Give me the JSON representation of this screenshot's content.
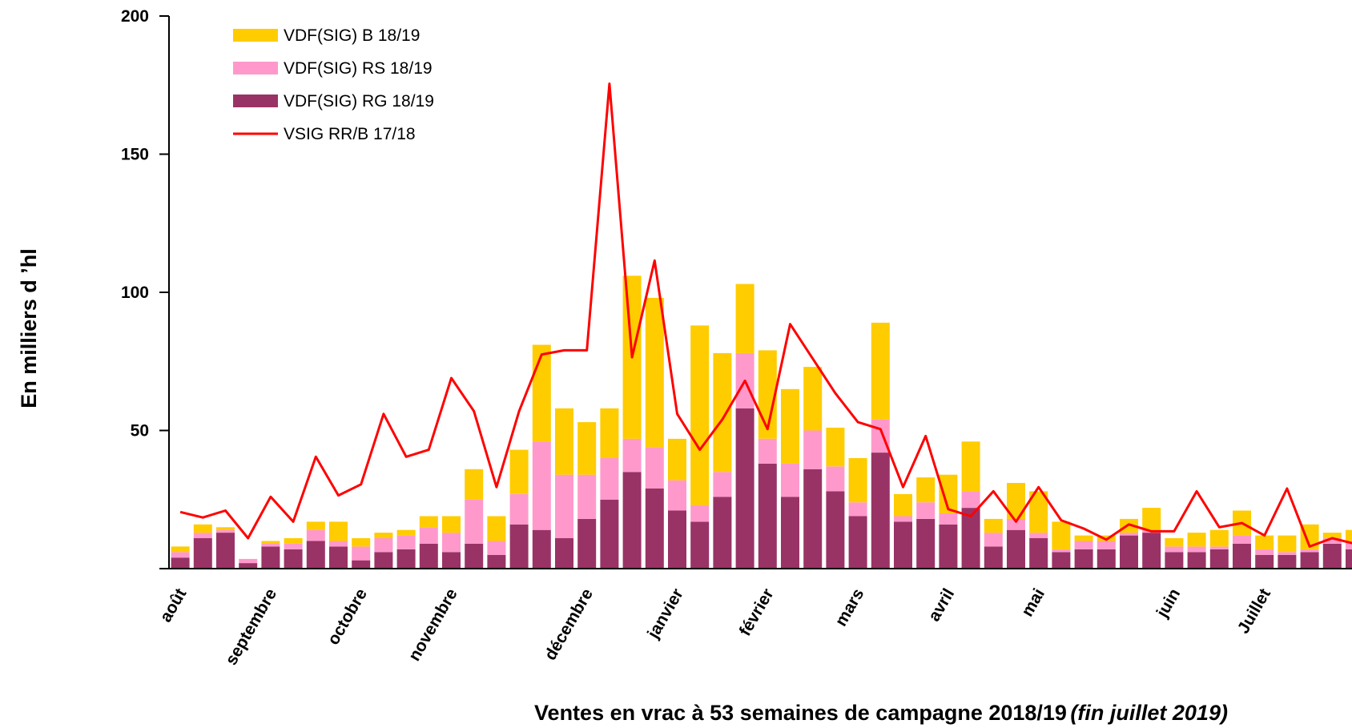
{
  "chart_data": {
    "type": "bar",
    "stacked": true,
    "title": "",
    "ylabel": "En milliers d ’hl",
    "xlabel_main": "Ventes en vrac à 53 semaines de campagne 2018/19",
    "xlabel_italic": "(fin juillet 2019)",
    "ylim": [
      0,
      200
    ],
    "yticks": [
      50,
      100,
      150,
      200
    ],
    "month_labels": [
      {
        "label": "août",
        "week": 1
      },
      {
        "label": "septembre",
        "week": 5
      },
      {
        "label": "octobre",
        "week": 9
      },
      {
        "label": "novembre",
        "week": 13
      },
      {
        "label": "décembre",
        "week": 19
      },
      {
        "label": "janvier",
        "week": 23
      },
      {
        "label": "février",
        "week": 27
      },
      {
        "label": "mars",
        "week": 31
      },
      {
        "label": "avril",
        "week": 35
      },
      {
        "label": "mai",
        "week": 39
      },
      {
        "label": "juin",
        "week": 45
      },
      {
        "label": "Juillet",
        "week": 49
      }
    ],
    "legend": [
      {
        "name": "VDF(SIG) B 18/19",
        "color": "#FFCC00",
        "kind": "bar"
      },
      {
        "name": "VDF(SIG) RS 18/19",
        "color": "#FF99CC",
        "kind": "bar"
      },
      {
        "name": "VDF(SIG) RG 18/19",
        "color": "#993366",
        "kind": "bar"
      },
      {
        "name": "VSIG RR/B 17/18",
        "color": "#FF0000",
        "kind": "line"
      }
    ],
    "series": [
      {
        "name": "VDF(SIG) RG 18/19",
        "color": "#993366",
        "values": [
          4,
          11,
          13,
          2,
          8,
          7,
          10,
          8,
          3,
          6,
          7,
          9,
          6,
          9,
          5,
          16,
          14,
          11,
          18,
          25,
          35,
          29,
          21,
          17,
          26,
          58,
          38,
          26,
          36,
          28,
          19,
          42,
          17,
          18,
          16,
          22,
          8,
          14,
          11,
          6,
          7,
          7,
          12,
          13,
          6,
          6,
          7,
          9,
          5,
          5,
          6,
          9,
          7
        ]
      },
      {
        "name": "VDF(SIG) RS 18/19",
        "color": "#FF99CC",
        "values": [
          2,
          2,
          1,
          1.5,
          1,
          2,
          4,
          2,
          5,
          5,
          5,
          6,
          7,
          16,
          5,
          11,
          32,
          23,
          16,
          15,
          12,
          15,
          11,
          6,
          9,
          20,
          9,
          12,
          14,
          9,
          5,
          12,
          2,
          6,
          4,
          6,
          5,
          4,
          2,
          1,
          3,
          3,
          1,
          1,
          2,
          2,
          1,
          3,
          2,
          1,
          1,
          2,
          3
        ]
      },
      {
        "name": "VDF(SIG) B 18/19",
        "color": "#FFCC00",
        "values": [
          2,
          3,
          1,
          0,
          1,
          2,
          3,
          7,
          3,
          2,
          2,
          4,
          6,
          11,
          9,
          16,
          35,
          24,
          19,
          18,
          59,
          54,
          15,
          65,
          43,
          25,
          32,
          27,
          23,
          14,
          16,
          35,
          8,
          9,
          14,
          18,
          5,
          13,
          15,
          10,
          2,
          2,
          5,
          8,
          3,
          5,
          6,
          9,
          5,
          6,
          9,
          2,
          4
        ]
      },
      {
        "name": "VSIG RR/B 17/18",
        "color": "#FF0000",
        "type": "line",
        "values": [
          20.5,
          18.5,
          21,
          11,
          26,
          17,
          40.5,
          26.5,
          30.5,
          56,
          40.5,
          43,
          69,
          57,
          29.5,
          57,
          77.5,
          79,
          79,
          175.5,
          76.5,
          111.5,
          56,
          43,
          54,
          68,
          50.5,
          88.5,
          76,
          63.5,
          53,
          50.5,
          29.5,
          48,
          21.5,
          19,
          28,
          17,
          29.5,
          17.5,
          14.5,
          10.5,
          16,
          13.5,
          13.5,
          28,
          15,
          16.5,
          12,
          29,
          8,
          11,
          9
        ]
      }
    ]
  }
}
